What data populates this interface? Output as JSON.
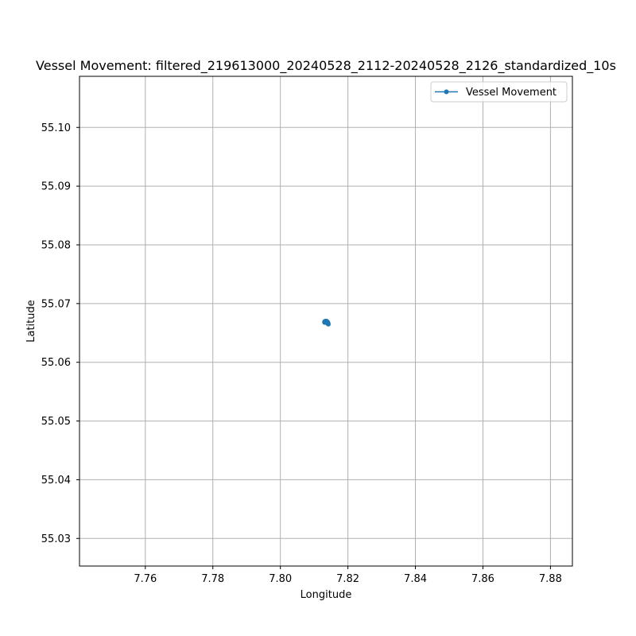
{
  "chart_data": {
    "type": "line",
    "title": "Vessel Movement: filtered_219613000_20240528_2112-20240528_2126_standardized_10s",
    "xlabel": "Longitude",
    "ylabel": "Latitude",
    "xlim": [
      7.7405,
      7.8865
    ],
    "ylim": [
      55.0253,
      55.1087
    ],
    "xticks": [
      7.76,
      7.78,
      7.8,
      7.82,
      7.84,
      7.86,
      7.88
    ],
    "xtick_labels": [
      "7.76",
      "7.78",
      "7.80",
      "7.82",
      "7.84",
      "7.86",
      "7.88"
    ],
    "yticks": [
      55.03,
      55.04,
      55.05,
      55.06,
      55.07,
      55.08,
      55.09,
      55.1
    ],
    "ytick_labels": [
      "55.03",
      "55.04",
      "55.05",
      "55.06",
      "55.07",
      "55.08",
      "55.09",
      "55.10"
    ],
    "grid": true,
    "legend_position": "top-right",
    "series": [
      {
        "name": "Vessel Movement",
        "color": "#1f77b4",
        "marker": "circle",
        "points": [
          {
            "x": 7.8131,
            "y": 55.0669
          },
          {
            "x": 7.8133,
            "y": 55.067
          },
          {
            "x": 7.8135,
            "y": 55.067
          },
          {
            "x": 7.8137,
            "y": 55.067
          },
          {
            "x": 7.8139,
            "y": 55.0669
          },
          {
            "x": 7.814,
            "y": 55.0668
          },
          {
            "x": 7.8141,
            "y": 55.0667
          },
          {
            "x": 7.8141,
            "y": 55.0666
          },
          {
            "x": 7.8142,
            "y": 55.0665
          },
          {
            "x": 7.8141,
            "y": 55.0667
          },
          {
            "x": 7.8139,
            "y": 55.0668
          },
          {
            "x": 7.8136,
            "y": 55.0669
          },
          {
            "x": 7.8133,
            "y": 55.0669
          },
          {
            "x": 7.8131,
            "y": 55.0668
          },
          {
            "x": 7.8134,
            "y": 55.0668
          },
          {
            "x": 7.8138,
            "y": 55.0667
          }
        ]
      }
    ]
  }
}
